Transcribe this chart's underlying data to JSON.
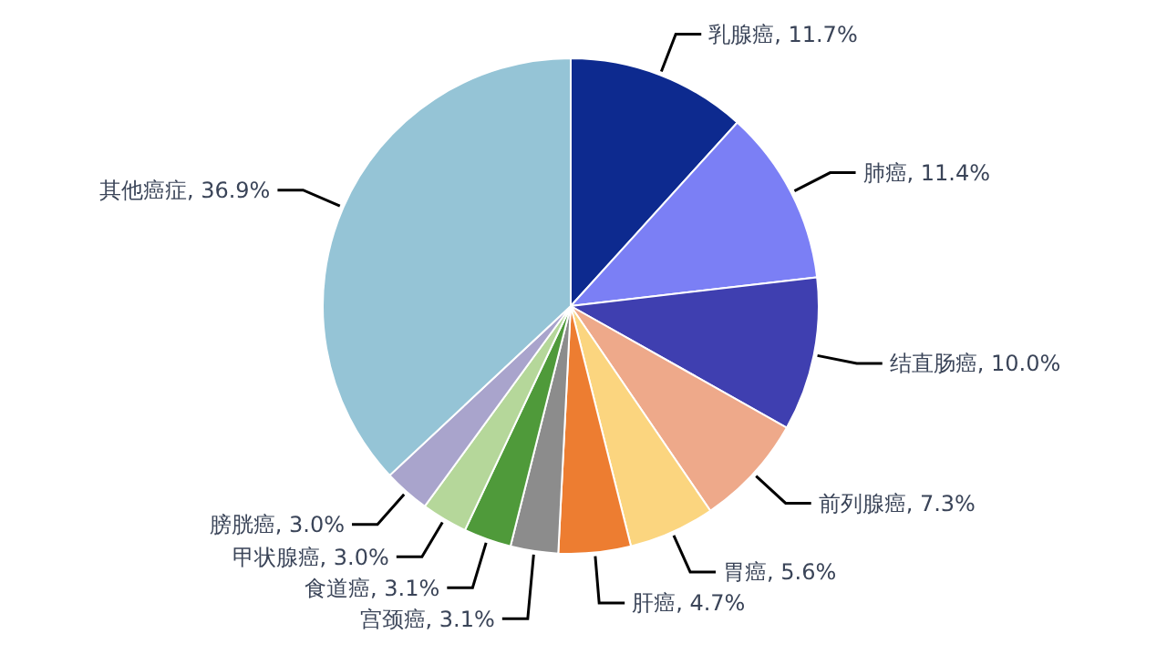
{
  "chart_data": {
    "type": "pie",
    "categories": [
      "乳腺癌",
      "肺癌",
      "结直肠癌",
      "前列腺癌",
      "胃癌",
      "肝癌",
      "宫颈癌",
      "食道癌",
      "甲状腺癌",
      "膀胱癌",
      "其他癌症"
    ],
    "values": [
      11.7,
      11.4,
      10.0,
      7.3,
      5.6,
      4.7,
      3.1,
      3.1,
      3.0,
      3.0,
      36.9
    ],
    "value_labels": [
      "11.7%",
      "11.4%",
      "10.0%",
      "7.3%",
      "5.6%",
      "4.7%",
      "3.1%",
      "3.1%",
      "3.0%",
      "3.0%",
      "36.9%"
    ],
    "colors": [
      "#0d2a8f",
      "#7b7ff5",
      "#3f3fb0",
      "#eea98a",
      "#fbd57f",
      "#ed7d31",
      "#8c8c8c",
      "#4f9a3a",
      "#b5d79a",
      "#a9a4cc",
      "#95c4d6"
    ],
    "legend": false
  }
}
